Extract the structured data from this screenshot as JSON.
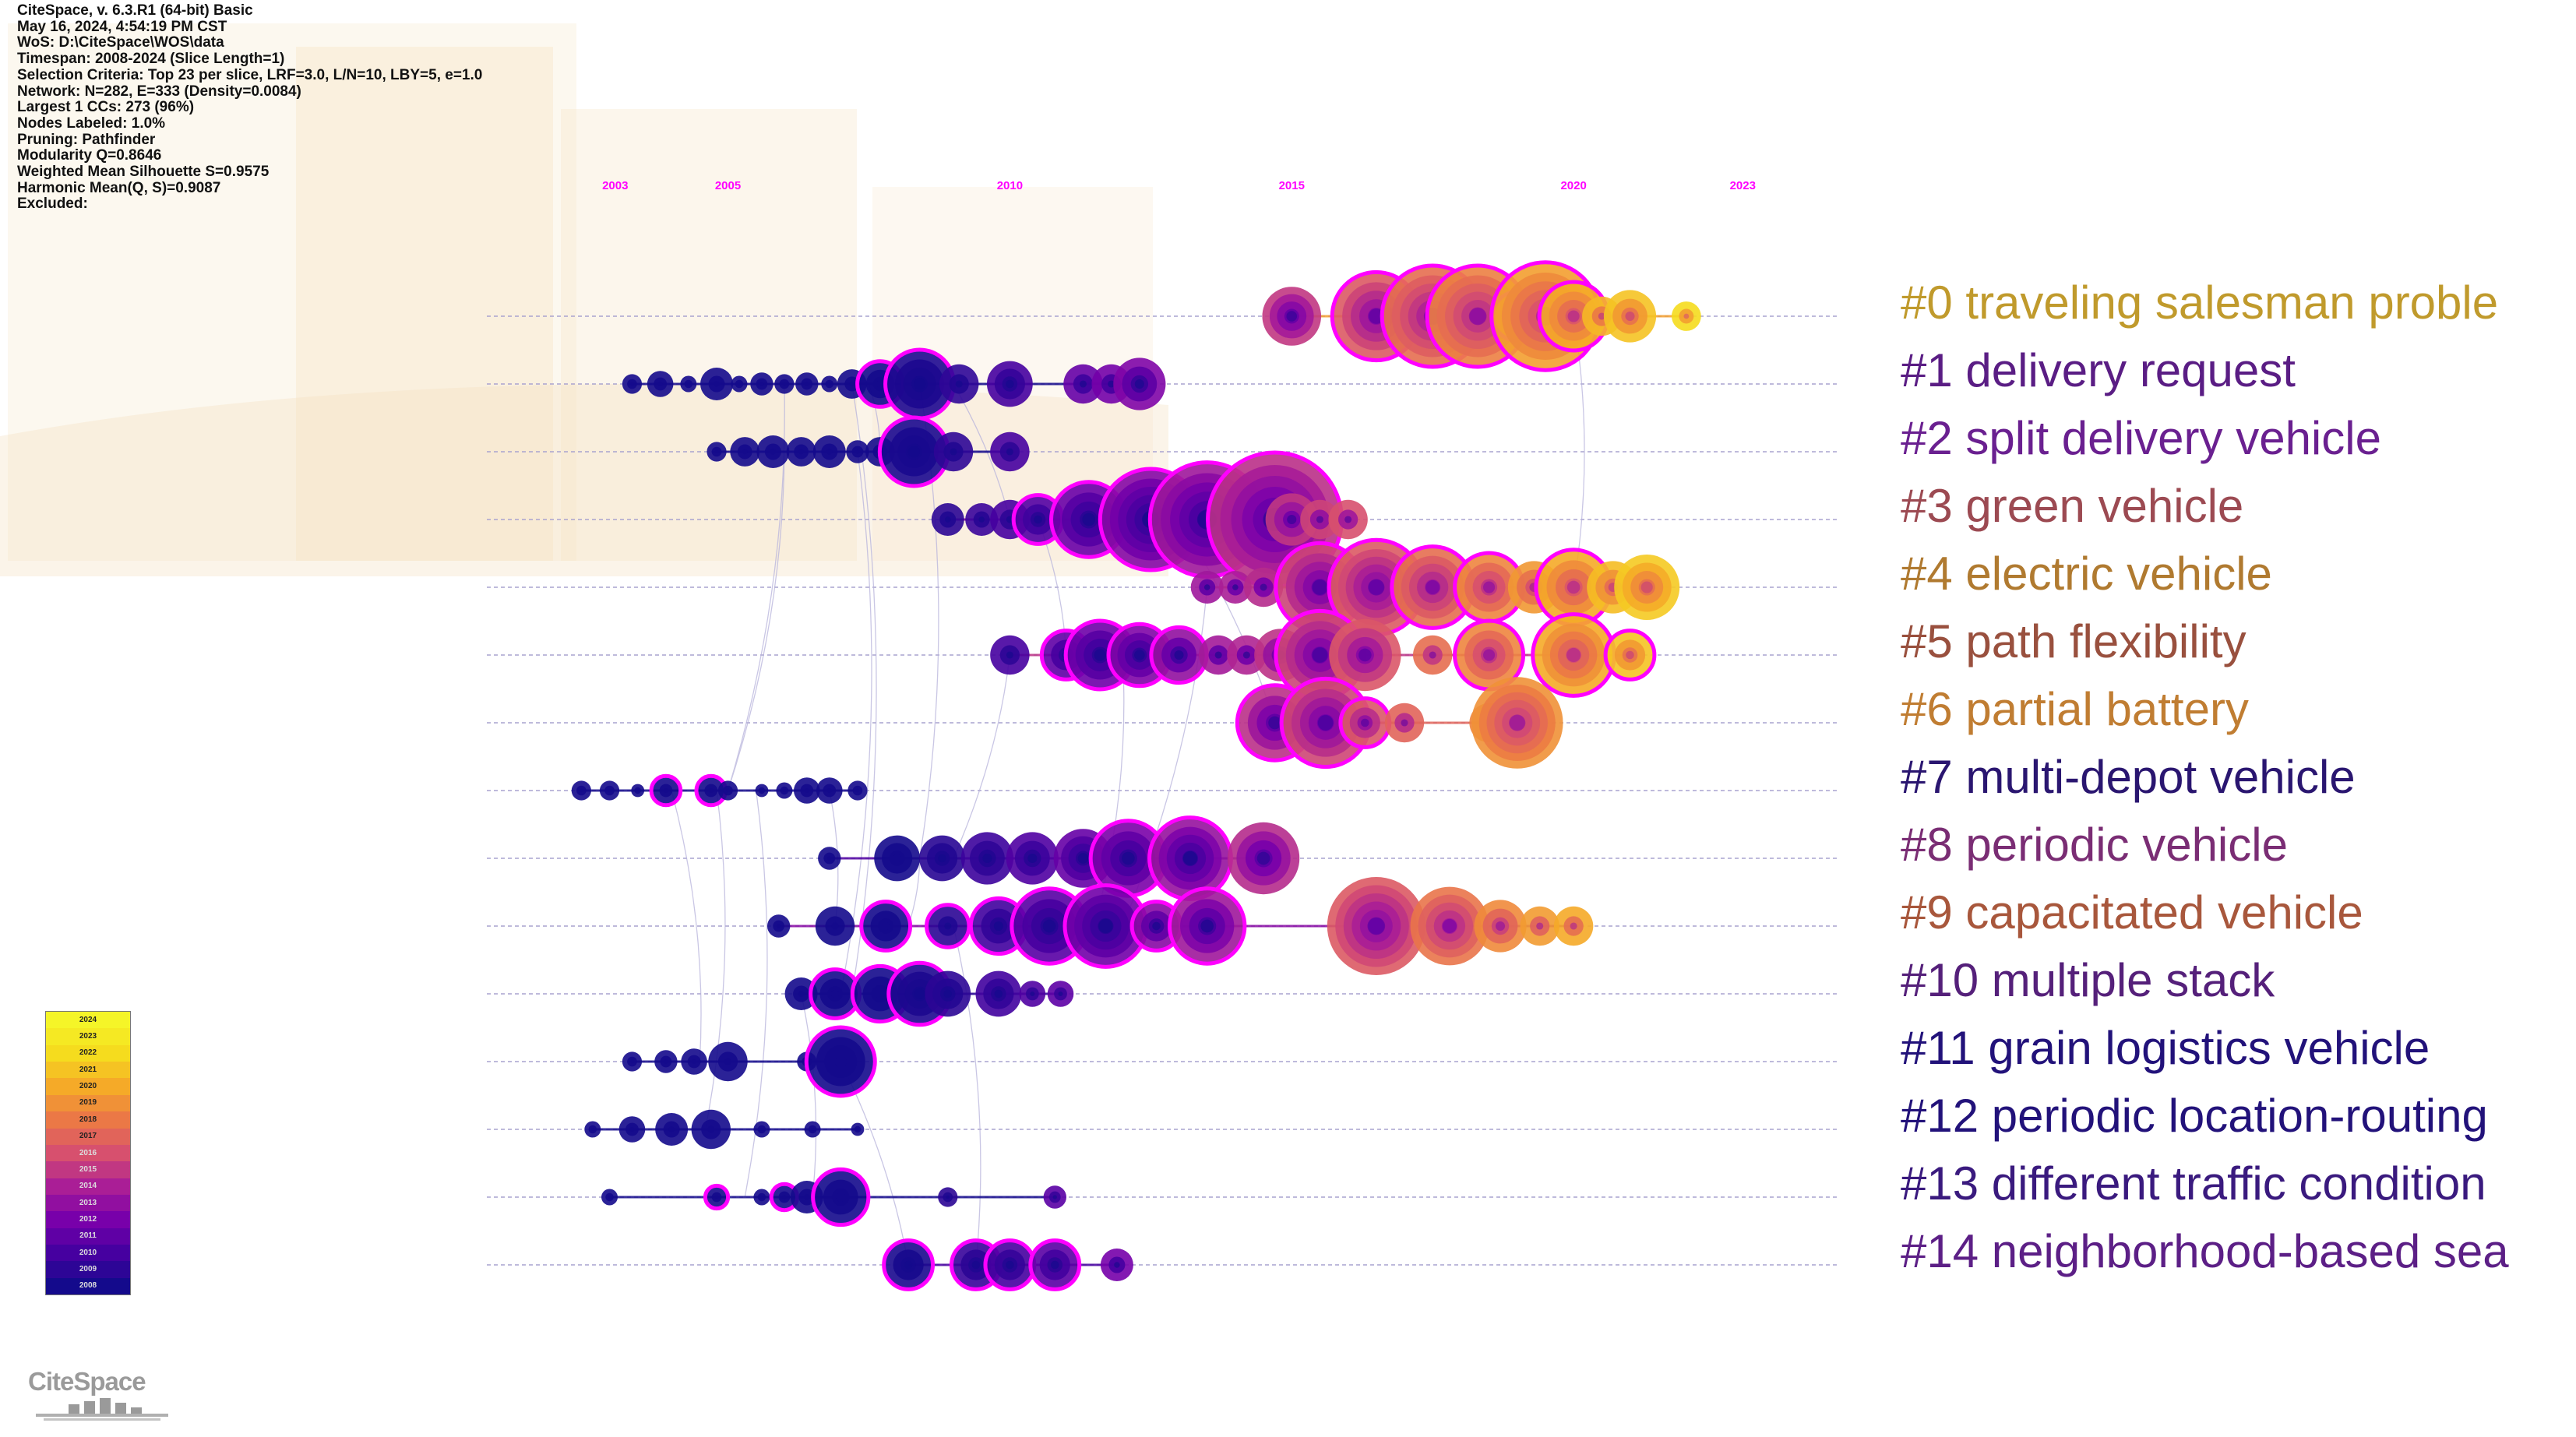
{
  "app": {
    "info_lines": [
      "CiteSpace, v. 6.3.R1 (64-bit) Basic",
      "May 16, 2024, 4:54:19 PM CST",
      "WoS: D:\\CiteSpace\\WOS\\data",
      "Timespan: 2008-2024 (Slice Length=1)",
      "Selection Criteria: Top 23 per slice, LRF=3.0, L/N=10, LBY=5, e=1.0",
      "Network: N=282, E=333 (Density=0.0084)",
      "Largest 1 CCs: 273 (96%)",
      "Nodes Labeled: 1.0%",
      "Pruning: Pathfinder",
      "Modularity Q=0.8646",
      "Weighted Mean Silhouette S=0.9575",
      "Harmonic Mean(Q, S)=0.9087",
      "Excluded:"
    ],
    "logo_text": "CiteSpace"
  },
  "colors": {
    "year_axis": "#ff00ff",
    "halo": "#ff00ff",
    "gridline": "#a9a3cf"
  },
  "chart_data": {
    "type": "timeline",
    "title": "",
    "x_axis_years": [
      2003,
      2005,
      2010,
      2015,
      2020,
      2023
    ],
    "xlim": [
      2001,
      2025
    ],
    "clusters": [
      {
        "id": 0,
        "label": "#0 traveling salesman proble",
        "color": "#c09a2c",
        "nodes": [
          [
            2015,
            18,
            false
          ],
          [
            2016.5,
            26,
            true
          ],
          [
            2017.5,
            30,
            true
          ],
          [
            2018.3,
            30,
            true
          ],
          [
            2019,
            14,
            true
          ],
          [
            2019.5,
            32,
            true
          ],
          [
            2020,
            20,
            true
          ],
          [
            2020.5,
            12,
            false
          ],
          [
            2021,
            16,
            false
          ],
          [
            2022,
            9,
            false
          ]
        ]
      },
      {
        "id": 1,
        "label": "#1 delivery request",
        "color": "#5a1d84",
        "nodes": [
          [
            2003.3,
            6,
            false
          ],
          [
            2003.8,
            8,
            false
          ],
          [
            2004.3,
            5,
            false
          ],
          [
            2004.8,
            10,
            false
          ],
          [
            2005.2,
            5,
            false
          ],
          [
            2005.6,
            7,
            false
          ],
          [
            2006,
            6,
            false
          ],
          [
            2006.4,
            7,
            false
          ],
          [
            2006.8,
            5,
            false
          ],
          [
            2007.2,
            9,
            false
          ],
          [
            2007.7,
            13,
            true
          ],
          [
            2008.4,
            20,
            true
          ],
          [
            2009.1,
            12,
            false
          ],
          [
            2010,
            14,
            false
          ],
          [
            2011.3,
            12,
            false
          ],
          [
            2011.8,
            12,
            false
          ],
          [
            2012.3,
            16,
            false
          ]
        ]
      },
      {
        "id": 2,
        "label": "#2 split delivery vehicle",
        "color": "#6a2090",
        "nodes": [
          [
            2004.8,
            6,
            false
          ],
          [
            2005.3,
            9,
            false
          ],
          [
            2005.8,
            10,
            false
          ],
          [
            2006.3,
            9,
            false
          ],
          [
            2006.8,
            10,
            false
          ],
          [
            2007.3,
            7,
            false
          ],
          [
            2007.7,
            9,
            false
          ],
          [
            2008.3,
            20,
            true
          ],
          [
            2009,
            12,
            false
          ],
          [
            2010,
            12,
            false
          ]
        ]
      },
      {
        "id": 3,
        "label": "#3 green vehicle",
        "color": "#9c4a52",
        "nodes": [
          [
            2008.9,
            10,
            false
          ],
          [
            2009.5,
            10,
            false
          ],
          [
            2010,
            12,
            false
          ],
          [
            2010.5,
            14,
            true
          ],
          [
            2011.4,
            22,
            true
          ],
          [
            2012.5,
            30,
            true
          ],
          [
            2013.5,
            34,
            true
          ],
          [
            2014.7,
            40,
            true
          ],
          [
            2015,
            16,
            false
          ],
          [
            2015.5,
            12,
            false
          ],
          [
            2016,
            12,
            false
          ]
        ]
      },
      {
        "id": 4,
        "label": "#4 electric vehicle",
        "color": "#b07a30",
        "nodes": [
          [
            2013.5,
            10,
            false
          ],
          [
            2014,
            10,
            false
          ],
          [
            2014.5,
            12,
            false
          ],
          [
            2015.5,
            26,
            true
          ],
          [
            2016.5,
            28,
            true
          ],
          [
            2017.5,
            24,
            true
          ],
          [
            2018.5,
            20,
            true
          ],
          [
            2019.3,
            16,
            false
          ],
          [
            2020,
            22,
            true
          ],
          [
            2020.7,
            16,
            false
          ],
          [
            2021.3,
            20,
            false
          ]
        ]
      },
      {
        "id": 5,
        "label": "#5 path flexibility",
        "color": "#99503e",
        "nodes": [
          [
            2010,
            12,
            false
          ],
          [
            2011,
            14,
            true
          ],
          [
            2011.6,
            20,
            true
          ],
          [
            2012.3,
            18,
            true
          ],
          [
            2013,
            16,
            true
          ],
          [
            2013.7,
            12,
            false
          ],
          [
            2014.2,
            12,
            false
          ],
          [
            2014.8,
            16,
            false
          ],
          [
            2015.5,
            26,
            true
          ],
          [
            2016.3,
            22,
            false
          ],
          [
            2017.5,
            12,
            false
          ],
          [
            2018.5,
            20,
            true
          ],
          [
            2020,
            24,
            true
          ],
          [
            2021,
            14,
            true
          ]
        ]
      },
      {
        "id": 6,
        "label": "#6 partial battery",
        "color": "#c07d32",
        "nodes": [
          [
            2014.7,
            22,
            true
          ],
          [
            2015.6,
            26,
            true
          ],
          [
            2016.3,
            14,
            true
          ],
          [
            2017,
            12,
            false
          ],
          [
            2018.5,
            12,
            false
          ],
          [
            2019,
            28,
            false
          ]
        ]
      },
      {
        "id": 7,
        "label": "#7 multi-depot vehicle",
        "color": "#2a1670",
        "nodes": [
          [
            2002.4,
            6,
            false
          ],
          [
            2002.9,
            6,
            false
          ],
          [
            2003.4,
            4,
            false
          ],
          [
            2003.9,
            8,
            true
          ],
          [
            2004.7,
            8,
            true
          ],
          [
            2005,
            6,
            false
          ],
          [
            2005.6,
            4,
            false
          ],
          [
            2006,
            5,
            false
          ],
          [
            2006.4,
            8,
            false
          ],
          [
            2006.8,
            8,
            false
          ],
          [
            2007.3,
            6,
            false
          ]
        ]
      },
      {
        "id": 8,
        "label": "#8 periodic vehicle",
        "color": "#7a2d74",
        "nodes": [
          [
            2006.8,
            7,
            false
          ],
          [
            2008,
            14,
            false
          ],
          [
            2008.8,
            14,
            false
          ],
          [
            2009.6,
            16,
            false
          ],
          [
            2010.4,
            16,
            false
          ],
          [
            2011.3,
            18,
            false
          ],
          [
            2012.1,
            22,
            true
          ],
          [
            2013.2,
            24,
            true
          ],
          [
            2014.5,
            22,
            false
          ]
        ]
      },
      {
        "id": 9,
        "label": "#9 capacitated vehicle",
        "color": "#a8573c",
        "nodes": [
          [
            2005.9,
            7,
            false
          ],
          [
            2006.9,
            12,
            false
          ],
          [
            2007.8,
            14,
            true
          ],
          [
            2008.9,
            12,
            true
          ],
          [
            2009.8,
            16,
            true
          ],
          [
            2010.7,
            22,
            true
          ],
          [
            2011.7,
            24,
            true
          ],
          [
            2012.6,
            14,
            true
          ],
          [
            2013.5,
            22,
            true
          ],
          [
            2016.5,
            30,
            false
          ],
          [
            2017.8,
            24,
            false
          ],
          [
            2018.7,
            16,
            false
          ],
          [
            2019.4,
            12,
            false
          ],
          [
            2020,
            12,
            false
          ]
        ]
      },
      {
        "id": 10,
        "label": "#10 multiple stack",
        "color": "#55207a",
        "nodes": [
          [
            2006.3,
            10,
            false
          ],
          [
            2006.9,
            14,
            true
          ],
          [
            2007.7,
            16,
            true
          ],
          [
            2008.4,
            18,
            true
          ],
          [
            2008.9,
            14,
            false
          ],
          [
            2009.8,
            14,
            false
          ],
          [
            2010.4,
            8,
            false
          ],
          [
            2010.9,
            8,
            false
          ]
        ]
      },
      {
        "id": 11,
        "label": "#11 grain logistics vehicle",
        "color": "#22127a",
        "nodes": [
          [
            2003.3,
            6,
            false
          ],
          [
            2003.9,
            7,
            false
          ],
          [
            2004.4,
            8,
            false
          ],
          [
            2005,
            12,
            false
          ],
          [
            2006.4,
            6,
            false
          ],
          [
            2007,
            20,
            true
          ]
        ]
      },
      {
        "id": 12,
        "label": "#12 periodic location-routing",
        "color": "#22127a",
        "nodes": [
          [
            2002.6,
            5,
            false
          ],
          [
            2003.3,
            8,
            false
          ],
          [
            2004,
            10,
            false
          ],
          [
            2004.7,
            12,
            false
          ],
          [
            2005.6,
            5,
            false
          ],
          [
            2006.5,
            5,
            false
          ],
          [
            2007.3,
            4,
            false
          ]
        ]
      },
      {
        "id": 13,
        "label": "#13 different traffic condition",
        "color": "#3a1a7e",
        "nodes": [
          [
            2002.9,
            5,
            false
          ],
          [
            2004.8,
            6,
            true
          ],
          [
            2005.6,
            5,
            false
          ],
          [
            2006,
            7,
            true
          ],
          [
            2006.4,
            10,
            false
          ],
          [
            2007,
            16,
            true
          ],
          [
            2008.9,
            6,
            false
          ],
          [
            2010.8,
            7,
            false
          ]
        ]
      },
      {
        "id": 14,
        "label": "#14 neighborhood-based sea",
        "color": "#5c1f86",
        "nodes": [
          [
            2008.2,
            14,
            true
          ],
          [
            2009.4,
            14,
            true
          ],
          [
            2010,
            14,
            true
          ],
          [
            2010.8,
            14,
            true
          ],
          [
            2011.9,
            10,
            false
          ]
        ]
      }
    ],
    "color_legend_years": [
      "2024",
      "2023",
      "2022",
      "2021",
      "2020",
      "2019",
      "2018",
      "2017",
      "2016",
      "2015",
      "2014",
      "2013",
      "2012",
      "2011",
      "2010",
      "2009",
      "2008"
    ]
  }
}
